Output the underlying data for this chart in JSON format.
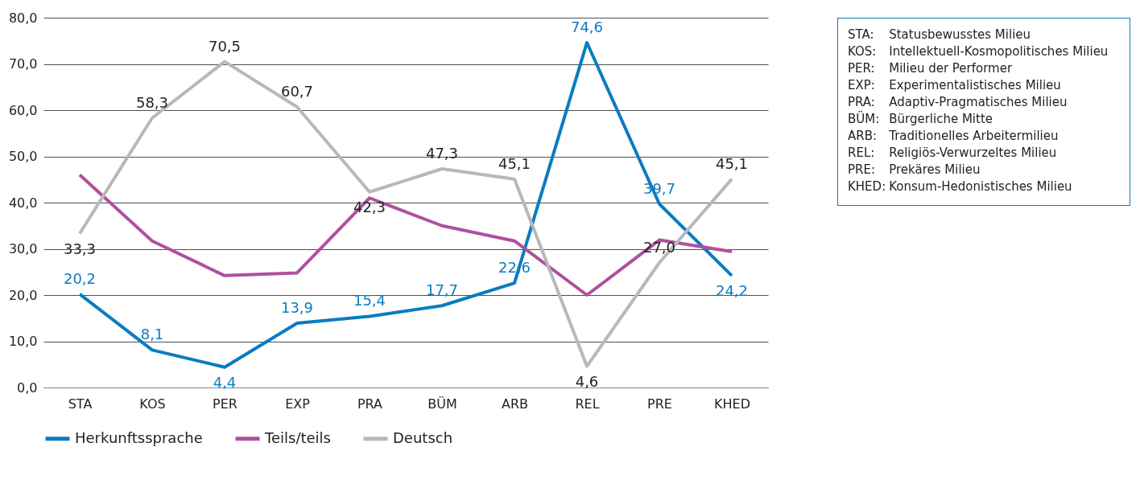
{
  "chart_data": {
    "type": "line",
    "categories": [
      "STA",
      "KOS",
      "PER",
      "EXP",
      "PRA",
      "BÜM",
      "ARB",
      "REL",
      "PRE",
      "KHED"
    ],
    "series": [
      {
        "name": "Herkunftssprache",
        "color": "#0a7cc1",
        "values": [
          20.2,
          8.1,
          4.4,
          13.9,
          15.4,
          17.7,
          22.6,
          74.6,
          39.7,
          24.2
        ],
        "value_labels": [
          "20,2",
          "8,1",
          "4,4",
          "13,9",
          "15,4",
          "17,7",
          "22,6",
          "74,6",
          "39,7",
          "24,2"
        ]
      },
      {
        "name": "Teils/teils",
        "color": "#b0509e",
        "values": [
          46.0,
          31.7,
          24.2,
          24.8,
          41.0,
          35.0,
          31.7,
          20.0,
          31.9,
          29.4
        ]
      },
      {
        "name": "Deutsch",
        "color": "#b8b8b8",
        "values": [
          33.3,
          58.3,
          70.5,
          60.7,
          42.3,
          47.3,
          45.1,
          4.6,
          27.0,
          45.1
        ],
        "value_labels": [
          "33,3",
          "58,3",
          "70,5",
          "60,7",
          "42,3",
          "47,3",
          "45,1",
          "4,6",
          "27,0",
          "45,1"
        ]
      }
    ],
    "ylim": [
      0,
      80
    ],
    "yticks": [
      {
        "value": 0,
        "label": "0,0"
      },
      {
        "value": 10,
        "label": "10,0"
      },
      {
        "value": 20,
        "label": "20,0"
      },
      {
        "value": 30,
        "label": "30,0"
      },
      {
        "value": 40,
        "label": "40,0"
      },
      {
        "value": 50,
        "label": "50,0"
      },
      {
        "value": 60,
        "label": "60,0"
      },
      {
        "value": 70,
        "label": "70,0"
      },
      {
        "value": 80,
        "label": "80,0"
      }
    ],
    "grid": "y",
    "legend": "bottom",
    "marker": "none",
    "line_style": "solid",
    "annotations": [
      "STA: Statusbewusstes Milieu",
      "KOS: Intellektuell-Kosmopolitisches Milieu",
      "PER: Milieu der Performer",
      "EXP: Experimentalistisches Milieu",
      "PRA: Adaptiv-Pragmatisches Milieu",
      "BÜM: Bürgerliche Mitte",
      "ARB: Traditionelles Arbeitermilieu",
      "REL: Religiös-Verwurzeltes Milieu",
      "PRE: Prekäres Milieu",
      "KHED: Konsum-Hedonistisches Milieu"
    ]
  }
}
